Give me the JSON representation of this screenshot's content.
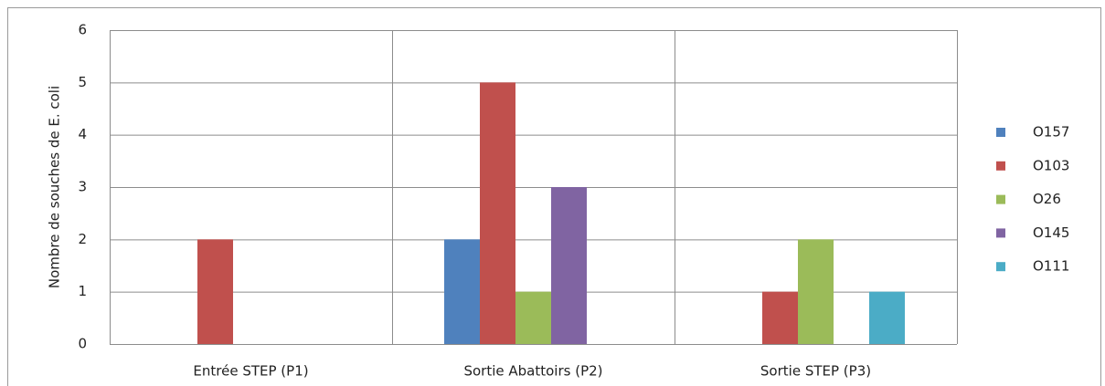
{
  "chart_data": {
    "type": "bar",
    "ylabel": "Nombre de souches de E. coli",
    "categories": [
      "Entrée STEP (P1)",
      "Sortie Abattoirs (P2)",
      "Sortie STEP (P3)"
    ],
    "series": [
      {
        "name": "O157",
        "color": "#4f81bd",
        "values": [
          0,
          2,
          0
        ]
      },
      {
        "name": "O103",
        "color": "#c0504d",
        "values": [
          2,
          5,
          1
        ]
      },
      {
        "name": "O26",
        "color": "#9bbb59",
        "values": [
          0,
          1,
          2
        ]
      },
      {
        "name": "O145",
        "color": "#8064a2",
        "values": [
          0,
          3,
          0
        ]
      },
      {
        "name": "O111",
        "color": "#4bacc6",
        "values": [
          0,
          0,
          1
        ]
      }
    ],
    "ylim": [
      0,
      6
    ],
    "yticks": [
      0,
      1,
      2,
      3,
      4,
      5,
      6
    ],
    "grid": true,
    "legend": "right"
  }
}
